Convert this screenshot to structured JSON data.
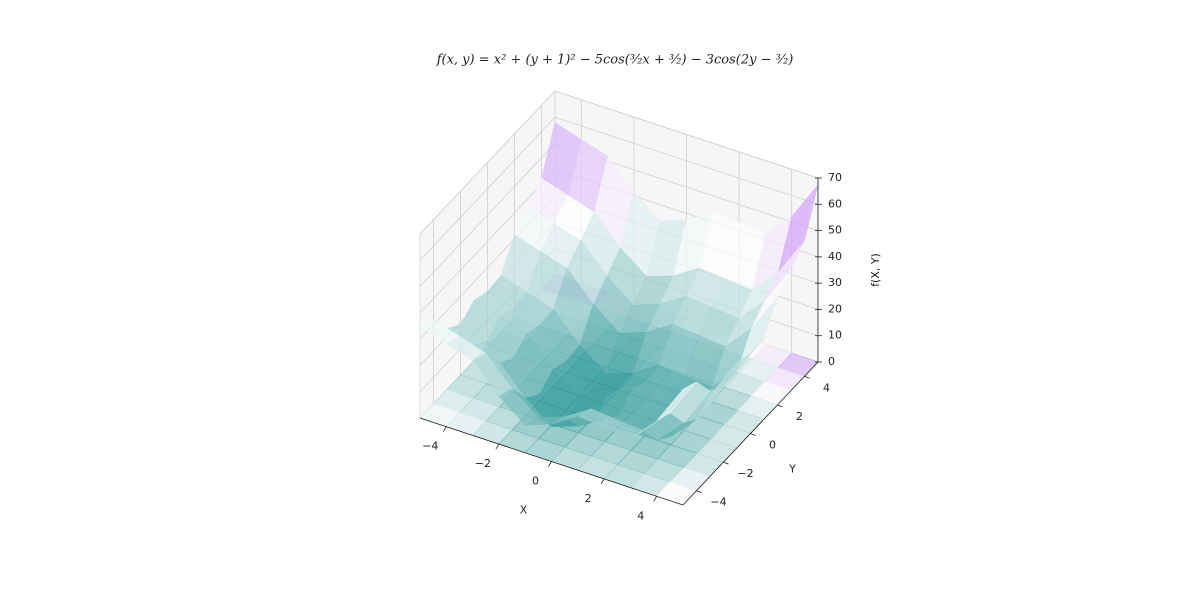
{
  "chart_data": {
    "type": "surface3d",
    "title": "f(x, y) = x² + (y + 1)² − 5cos(³⁄₂x + ³⁄₂) − 3cos(2y − ³⁄₂)",
    "xlabel": "X",
    "ylabel": "Y",
    "zlabel": "f(X, Y)",
    "x": [
      -5,
      -4,
      -3,
      -2,
      -1,
      0,
      1,
      2,
      3,
      4,
      5
    ],
    "y": [
      -5,
      -4,
      -3,
      -2,
      -1,
      0,
      1,
      2,
      3,
      4,
      5
    ],
    "z": [
      [
        34.7,
        31.6,
        28.5,
        18.2,
        10.5,
        14.2,
        20.5,
        19.6,
        18.7,
        28.8,
        44.1
      ],
      [
        32.2,
        29.0,
        25.9,
        15.6,
        8.0,
        11.6,
        17.9,
        17.0,
        16.2,
        26.3,
        41.5
      ],
      [
        23.2,
        20.0,
        16.9,
        6.6,
        -1.0,
        2.6,
        8.9,
        8.0,
        7.2,
        17.2,
        32.5
      ],
      [
        19.1,
        15.9,
        12.8,
        2.5,
        -5.1,
        -1.5,
        4.8,
        3.9,
        3.1,
        13.1,
        28.4
      ],
      [
        23.0,
        19.9,
        16.8,
        6.5,
        -1.2,
        2.5,
        8.8,
        7.9,
        7.0,
        17.1,
        32.4
      ],
      [
        21.0,
        17.8,
        14.7,
        4.4,
        -3.2,
        0.4,
        6.7,
        5.8,
        5.0,
        15.1,
        30.3
      ],
      [
        21.6,
        18.4,
        15.3,
        5.0,
        -2.6,
        1.0,
        7.3,
        6.4,
        5.6,
        15.6,
        30.9
      ],
      [
        31.6,
        28.5,
        25.4,
        15.0,
        7.4,
        11.0,
        17.4,
        16.5,
        15.6,
        25.7,
        41.0
      ],
      [
        36.8,
        33.7,
        30.6,
        20.3,
        12.6,
        16.3,
        22.6,
        21.7,
        20.8,
        30.9,
        46.2
      ],
      [
        42.3,
        39.1,
        36.0,
        25.7,
        18.1,
        21.7,
        28.0,
        27.1,
        26.3,
        36.3,
        51.6
      ],
      [
        58.0,
        54.9,
        51.8,
        41.5,
        33.8,
        37.5,
        43.8,
        42.9,
        42.0,
        52.1,
        67.4
      ]
    ],
    "xlim": [
      -5,
      5
    ],
    "ylim": [
      -5,
      5
    ],
    "zlim": [
      0,
      70
    ],
    "xticks": [
      {
        "value": -4,
        "label": "−4"
      },
      {
        "value": -2,
        "label": "−2"
      },
      0,
      2,
      4
    ],
    "yticks": [
      {
        "value": -4,
        "label": "−4"
      },
      {
        "value": -2,
        "label": "−2"
      },
      0,
      2,
      4
    ],
    "zticks": [
      0,
      10,
      20,
      30,
      40,
      50,
      60,
      70
    ],
    "colormap": [
      "#2f9999",
      "#ffffff",
      "#a040f0"
    ],
    "grid": true,
    "contour": true
  }
}
